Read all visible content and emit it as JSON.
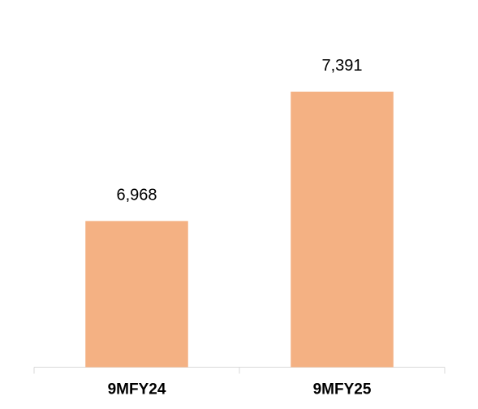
{
  "chart_data": {
    "type": "bar",
    "categories": [
      "9MFY24",
      "9MFY25"
    ],
    "values": [
      6968,
      7391
    ],
    "value_labels": [
      "6,968",
      "7,391"
    ],
    "color": "#f4b183",
    "ylim": [
      6490,
      7550
    ]
  }
}
